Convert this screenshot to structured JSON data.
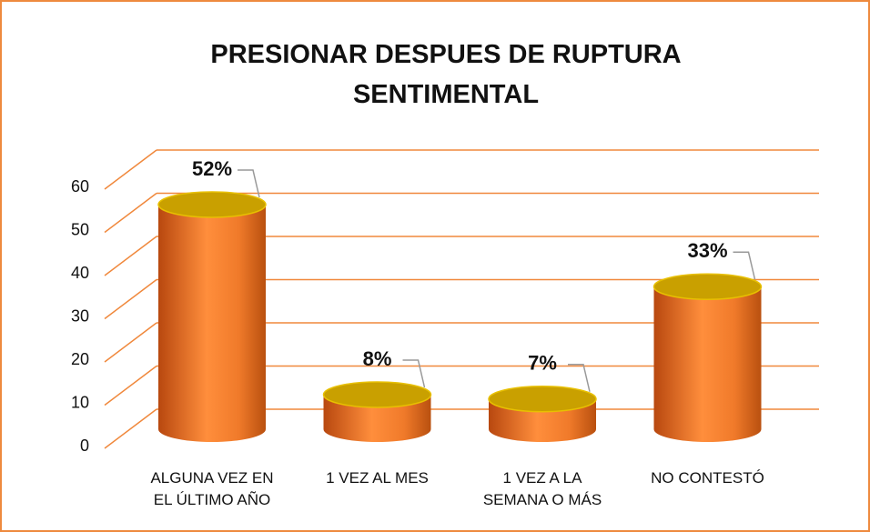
{
  "chart_data": {
    "type": "cylinder-bar",
    "title": "PRESIONAR DESPUES DE RUPTURA SENTIMENTAL",
    "categories": [
      "ALGUNA VEZ EN EL ÚLTIMO AÑO",
      "1 VEZ AL MES",
      "1 VEZ A LA SEMANA O MÁS",
      "NO CONTESTÓ"
    ],
    "values": [
      52,
      8,
      7,
      33
    ],
    "value_labels": [
      "52%",
      "8%",
      "7%",
      "33%"
    ],
    "color": "#f5782a",
    "top_color": "#c9a000",
    "grid_color": "#f0883c",
    "ylim": [
      0,
      60
    ],
    "yticks": [
      0,
      10,
      20,
      30,
      40,
      50,
      60
    ],
    "grid": true
  }
}
